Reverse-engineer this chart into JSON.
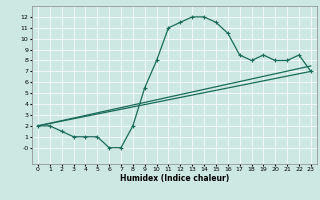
{
  "xlabel": "Humidex (Indice chaleur)",
  "xlim": [
    -0.5,
    23.5
  ],
  "ylim": [
    -1.5,
    13
  ],
  "xticks": [
    0,
    1,
    2,
    3,
    4,
    5,
    6,
    7,
    8,
    9,
    10,
    11,
    12,
    13,
    14,
    15,
    16,
    17,
    18,
    19,
    20,
    21,
    22,
    23
  ],
  "yticks": [
    0,
    1,
    2,
    3,
    4,
    5,
    6,
    7,
    8,
    9,
    10,
    11,
    12
  ],
  "ytick_labels": [
    "-0",
    "1",
    "2",
    "3",
    "4",
    "5",
    "6",
    "7",
    "8",
    "9",
    "10",
    "11",
    "12"
  ],
  "bg_color": "#cde8e3",
  "line_color": "#1a6b5a",
  "grid_color": "#ffffff",
  "line1_x": [
    0,
    1,
    2,
    3,
    4,
    5,
    6,
    7,
    8,
    9,
    10,
    11,
    12,
    13,
    14,
    15,
    16,
    17,
    18,
    19,
    20,
    21,
    22,
    23
  ],
  "line1_y": [
    2,
    2,
    1.5,
    1,
    1,
    1,
    0,
    0,
    2,
    5.5,
    8,
    11,
    11.5,
    12,
    12,
    11.5,
    10.5,
    8.5,
    8,
    8.5,
    8,
    8,
    8.5,
    7
  ],
  "line2_x": [
    0,
    23
  ],
  "line2_y": [
    2,
    7.5
  ],
  "line3_x": [
    0,
    23
  ],
  "line3_y": [
    2,
    7.0
  ]
}
